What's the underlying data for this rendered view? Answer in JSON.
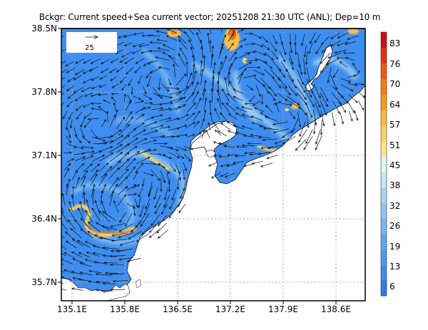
{
  "title": "Bckgr: Current speed+Sea current vector; 20251208 21:30 UTC (ANL); Dep=10 m",
  "map": {
    "lon_range": [
      134.97,
      138.99
    ],
    "lat_range": [
      35.57,
      38.5
    ],
    "x_ticks": [
      "135.1E",
      "135.8E",
      "136.5E",
      "137.2E",
      "137.9E",
      "138.6E"
    ],
    "x_tick_values": [
      135.1,
      135.8,
      136.5,
      137.2,
      137.9,
      138.6
    ],
    "y_ticks": [
      "38.5N",
      "37.8N",
      "37.1N",
      "36.4N",
      "35.7N"
    ],
    "y_tick_values": [
      38.5,
      37.8,
      37.1,
      36.4,
      35.7
    ],
    "gridlines": "dotted",
    "background_field": "Current speed",
    "vector_field": "Sea current vector",
    "datetime": "20251208 21:30 UTC",
    "analysis": "ANL",
    "depth": "Dep=10 m",
    "sea_color": "#3d8ef0",
    "land_color": "#ffffff"
  },
  "legend": {
    "reference_vector_label": "25"
  },
  "colorbar": {
    "ticks": [
      "83",
      "76",
      "70",
      "64",
      "57",
      "51",
      "45",
      "38",
      "32",
      "26",
      "19",
      "13",
      "6"
    ],
    "colors": [
      "#2b7de9",
      "#3a8bef",
      "#4a98f0",
      "#5ea6f1",
      "#77b6f2",
      "#8fc5f3",
      "#a6d6f3",
      "#c2e8f4",
      "#ddf6f6",
      "#fbe58a",
      "#fdd264",
      "#fdb838",
      "#fb9a13",
      "#fb7b10",
      "#f9560f",
      "#e8300e",
      "#c8100c"
    ]
  }
}
